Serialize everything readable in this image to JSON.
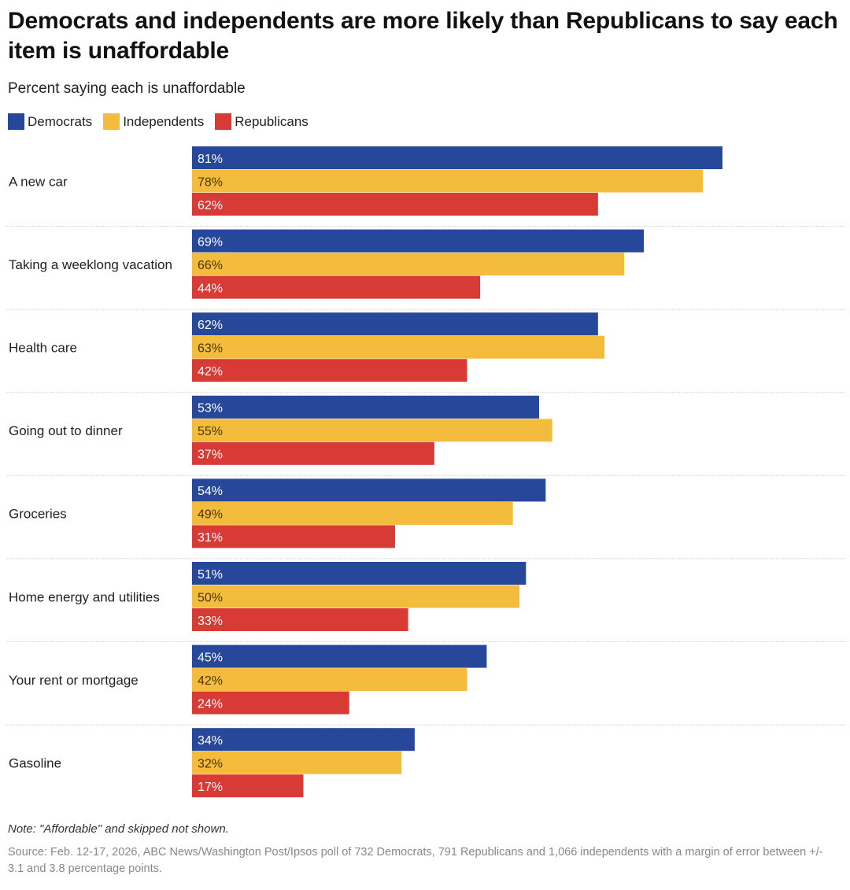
{
  "header": {
    "title": "Democrats and independents are more likely than Republicans to say each item is unaffordable",
    "subtitle": "Percent saying each is unaffordable"
  },
  "legend": [
    {
      "label": "Democrats",
      "color": "#27479a"
    },
    {
      "label": "Independents",
      "color": "#f4bc3c"
    },
    {
      "label": "Republicans",
      "color": "#d83a36"
    }
  ],
  "chart_data": {
    "type": "bar",
    "orientation": "horizontal",
    "title": "Democrats and independents are more likely than Republicans to say each item is unaffordable",
    "subtitle": "Percent saying each is unaffordable",
    "xlabel": "",
    "ylabel": "",
    "xlim": [
      0,
      100
    ],
    "grid": false,
    "legend_position": "top-left",
    "categories": [
      "A new car",
      "Taking a weeklong vacation",
      "Health care",
      "Going out to dinner",
      "Groceries",
      "Home energy and utilities",
      "Your rent or mortgage",
      "Gasoline"
    ],
    "series": [
      {
        "name": "Democrats",
        "color": "#27479a",
        "label_color": "#ffffff",
        "values": [
          81,
          69,
          62,
          53,
          54,
          51,
          45,
          34
        ]
      },
      {
        "name": "Independents",
        "color": "#f4bc3c",
        "label_color": "#4a3400",
        "values": [
          78,
          66,
          63,
          55,
          49,
          50,
          42,
          32
        ]
      },
      {
        "name": "Republicans",
        "color": "#d83a36",
        "label_color": "#ffffff",
        "values": [
          62,
          44,
          42,
          37,
          31,
          33,
          24,
          17
        ]
      }
    ],
    "value_suffix": "%"
  },
  "footer": {
    "note": "Note: \"Affordable\" and skipped not shown.",
    "source": "Source: Feb. 12-17, 2026, ABC News/Washington Post/Ipsos poll of 732 Democrats, 791 Republicans and 1,066 independents with a margin of error between +/- 3.1 and 3.8 percentage points."
  }
}
